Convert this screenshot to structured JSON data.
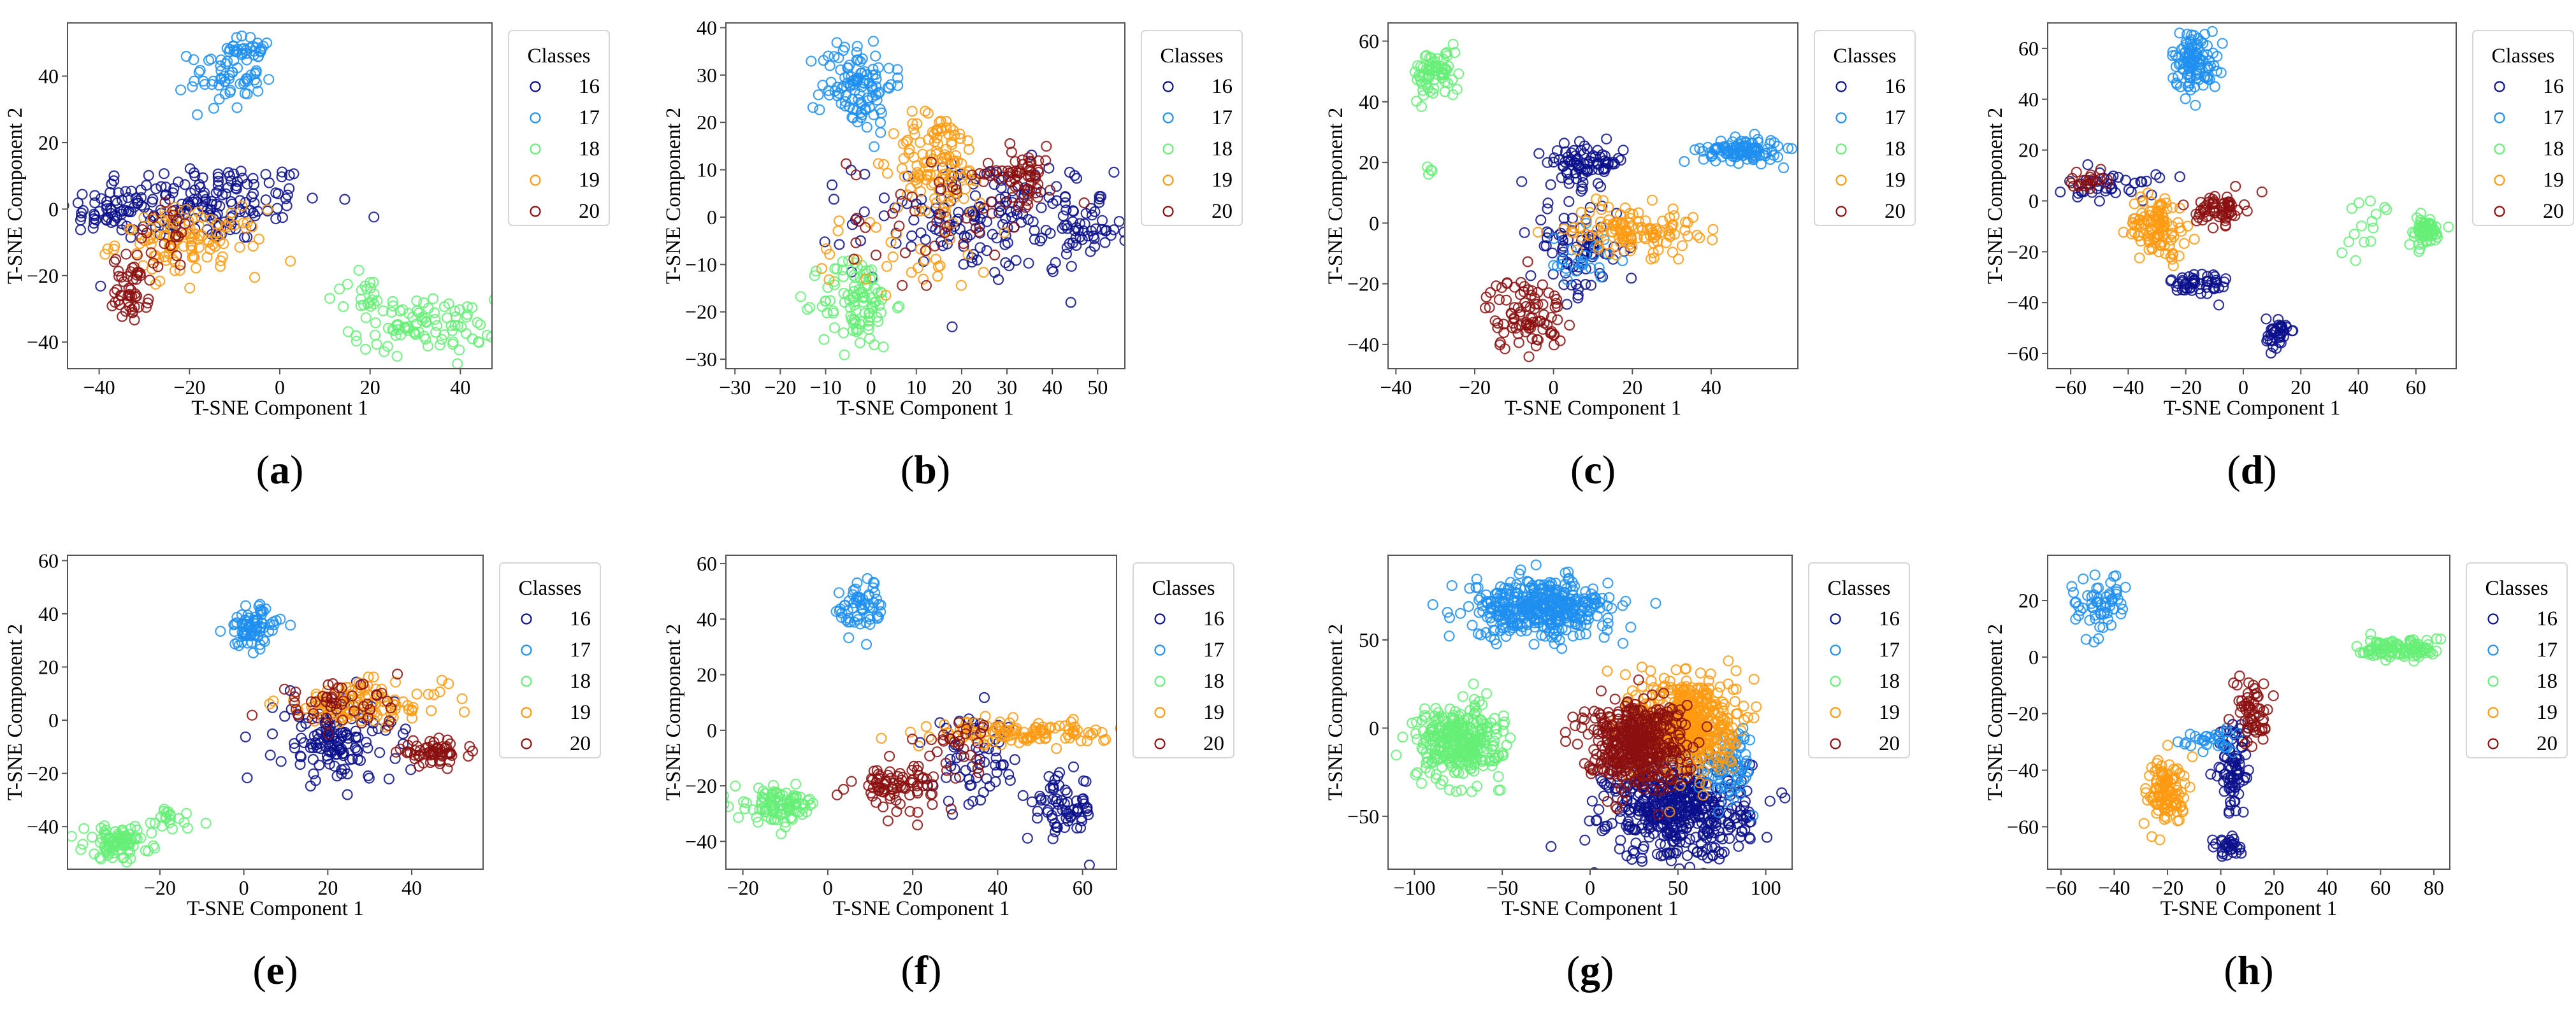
{
  "figure": {
    "classes_title": "Classes"
  },
  "class_colors": {
    "16": "#0a0f8c",
    "17": "#1e8ff0",
    "18": "#66ee77",
    "19": "#ff9a10",
    "20": "#8b0f0f"
  },
  "chart_data": [
    {
      "type": "scatter",
      "panel": "(a)",
      "panel_letter": "a",
      "xlabel": "T-SNE Component 1",
      "ylabel": "T-SNE Component 2",
      "xlim": [
        -47,
        47
      ],
      "ylim": [
        -48,
        56
      ],
      "xticks": [
        -40,
        -20,
        0,
        20,
        40
      ],
      "yticks": [
        -40,
        -20,
        0,
        20,
        40
      ],
      "legend": {
        "title": "Classes",
        "entries": [
          "16",
          "17",
          "18",
          "19",
          "20"
        ],
        "placement": "right-outside-top"
      },
      "series": [
        {
          "name": "16",
          "clusters": [
            {
              "cx": -18,
              "cy": 2,
              "sx": 14,
              "sy": 6,
              "n": 180
            },
            {
              "cx": -38,
              "cy": -2,
              "sx": 4,
              "sy": 3,
              "n": 30
            }
          ]
        },
        {
          "name": "17",
          "clusters": [
            {
              "cx": -12,
              "cy": 40,
              "sx": 4,
              "sy": 5,
              "n": 60
            },
            {
              "cx": -6,
              "cy": 48,
              "sx": 2,
              "sy": 2,
              "n": 25
            }
          ]
        },
        {
          "name": "18",
          "clusters": [
            {
              "cx": 32,
              "cy": -35,
              "sx": 8,
              "sy": 4,
              "n": 90
            },
            {
              "cx": 18,
              "cy": -26,
              "sx": 4,
              "sy": 3,
              "n": 20
            }
          ]
        },
        {
          "name": "19",
          "clusters": [
            {
              "cx": -20,
              "cy": -10,
              "sx": 8,
              "sy": 5,
              "n": 110
            }
          ]
        },
        {
          "name": "20",
          "clusters": [
            {
              "cx": -33,
              "cy": -24,
              "sx": 2,
              "sy": 5,
              "n": 50
            },
            {
              "cx": -26,
              "cy": -8,
              "sx": 3,
              "sy": 5,
              "n": 20
            }
          ]
        }
      ]
    },
    {
      "type": "scatter",
      "panel": "(b)",
      "panel_letter": "b",
      "xlabel": "T-SNE Component 1",
      "ylabel": "T-SNE Component 2",
      "xlim": [
        -32,
        56
      ],
      "ylim": [
        -32,
        41
      ],
      "xticks": [
        -30,
        -20,
        -10,
        0,
        10,
        20,
        30,
        40,
        50
      ],
      "yticks": [
        -30,
        -20,
        -10,
        0,
        10,
        20,
        30,
        40
      ],
      "legend": {
        "title": "Classes",
        "entries": [
          "16",
          "17",
          "18",
          "19",
          "20"
        ],
        "placement": "right-outside-top"
      },
      "series": [
        {
          "name": "16",
          "clusters": [
            {
              "cx": 25,
              "cy": 0,
              "sx": 14,
              "sy": 6,
              "n": 170
            },
            {
              "cx": 47,
              "cy": -3,
              "sx": 4,
              "sy": 3,
              "n": 40
            }
          ]
        },
        {
          "name": "17",
          "clusters": [
            {
              "cx": -3,
              "cy": 28,
              "sx": 4,
              "sy": 5,
              "n": 110
            }
          ]
        },
        {
          "name": "18",
          "clusters": [
            {
              "cx": -3,
              "cy": -18,
              "sx": 4,
              "sy": 5,
              "n": 100
            }
          ]
        },
        {
          "name": "19",
          "clusters": [
            {
              "cx": 15,
              "cy": 12,
              "sx": 5,
              "sy": 5,
              "n": 110
            },
            {
              "cx": 10,
              "cy": -5,
              "sx": 12,
              "sy": 6,
              "n": 40
            }
          ]
        },
        {
          "name": "20",
          "clusters": [
            {
              "cx": 33,
              "cy": 9,
              "sx": 4,
              "sy": 3,
              "n": 60
            },
            {
              "cx": 15,
              "cy": 0,
              "sx": 10,
              "sy": 7,
              "n": 40
            }
          ]
        }
      ]
    },
    {
      "type": "scatter",
      "panel": "(c)",
      "panel_letter": "c",
      "xlabel": "T-SNE Component 1",
      "ylabel": "T-SNE Component 2",
      "xlim": [
        -42,
        62
      ],
      "ylim": [
        -48,
        66
      ],
      "xticks": [
        -40,
        -20,
        0,
        20,
        40
      ],
      "yticks": [
        -40,
        -20,
        0,
        20,
        40,
        60
      ],
      "legend": {
        "title": "Classes",
        "entries": [
          "16",
          "17",
          "18",
          "19",
          "20"
        ],
        "placement": "right-outside-top"
      },
      "series": [
        {
          "name": "16",
          "clusters": [
            {
              "cx": 8,
              "cy": 20,
              "sx": 5,
              "sy": 3,
              "n": 80
            },
            {
              "cx": 6,
              "cy": -8,
              "sx": 6,
              "sy": 8,
              "n": 80
            }
          ]
        },
        {
          "name": "17",
          "clusters": [
            {
              "cx": 48,
              "cy": 24,
              "sx": 5,
              "sy": 2,
              "n": 110
            },
            {
              "cx": 6,
              "cy": -12,
              "sx": 4,
              "sy": 5,
              "n": 25
            }
          ]
        },
        {
          "name": "18",
          "clusters": [
            {
              "cx": -30,
              "cy": 49,
              "sx": 3,
              "sy": 4,
              "n": 70
            },
            {
              "cx": -32,
              "cy": 17,
              "sx": 1,
              "sy": 1,
              "n": 4
            }
          ]
        },
        {
          "name": "19",
          "clusters": [
            {
              "cx": 20,
              "cy": -2,
              "sx": 8,
              "sy": 4,
              "n": 120
            }
          ]
        },
        {
          "name": "20",
          "clusters": [
            {
              "cx": -7,
              "cy": -30,
              "sx": 5,
              "sy": 6,
              "n": 90
            }
          ]
        }
      ]
    },
    {
      "type": "scatter",
      "panel": "(d)",
      "panel_letter": "d",
      "xlabel": "T-SNE Component 1",
      "ylabel": "T-SNE Component 2",
      "xlim": [
        -68,
        74
      ],
      "ylim": [
        -66,
        70
      ],
      "xticks": [
        -60,
        -40,
        -20,
        0,
        20,
        40,
        60
      ],
      "yticks": [
        -60,
        -40,
        -20,
        0,
        20,
        40,
        60
      ],
      "legend": {
        "title": "Classes",
        "entries": [
          "16",
          "17",
          "18",
          "19",
          "20"
        ],
        "placement": "right-outside-top"
      },
      "series": [
        {
          "name": "16",
          "clusters": [
            {
              "cx": -15,
              "cy": -33,
              "sx": 5,
              "sy": 3,
              "n": 50
            },
            {
              "cx": 12,
              "cy": -52,
              "sx": 2,
              "sy": 3,
              "n": 40
            },
            {
              "cx": -45,
              "cy": 6,
              "sx": 8,
              "sy": 3,
              "n": 40
            }
          ]
        },
        {
          "name": "17",
          "clusters": [
            {
              "cx": -17,
              "cy": 55,
              "sx": 4,
              "sy": 6,
              "n": 110
            }
          ]
        },
        {
          "name": "18",
          "clusters": [
            {
              "cx": 63,
              "cy": -12,
              "sx": 3,
              "sy": 3,
              "n": 60
            },
            {
              "cx": 45,
              "cy": -10,
              "sx": 4,
              "sy": 6,
              "n": 15
            }
          ]
        },
        {
          "name": "19",
          "clusters": [
            {
              "cx": -30,
              "cy": -10,
              "sx": 5,
              "sy": 6,
              "n": 110
            }
          ]
        },
        {
          "name": "20",
          "clusters": [
            {
              "cx": -8,
              "cy": -3,
              "sx": 4,
              "sy": 3,
              "n": 60
            },
            {
              "cx": -55,
              "cy": 8,
              "sx": 4,
              "sy": 2,
              "n": 20
            }
          ]
        }
      ]
    },
    {
      "type": "scatter",
      "panel": "(e)",
      "panel_letter": "e",
      "xlabel": "T-SNE Component 1",
      "ylabel": "T-SNE Component 2",
      "xlim": [
        -42,
        57
      ],
      "ylim": [
        -56,
        62
      ],
      "xticks": [
        -20,
        0,
        20,
        40
      ],
      "yticks": [
        -40,
        -20,
        0,
        20,
        40,
        60
      ],
      "legend": {
        "title": "Classes",
        "entries": [
          "16",
          "17",
          "18",
          "19",
          "20"
        ],
        "placement": "right-outside-top"
      },
      "series": [
        {
          "name": "16",
          "clusters": [
            {
              "cx": 22,
              "cy": -8,
              "sx": 7,
              "sy": 8,
              "n": 140
            }
          ]
        },
        {
          "name": "17",
          "clusters": [
            {
              "cx": 2,
              "cy": 35,
              "sx": 3,
              "sy": 4,
              "n": 80
            }
          ]
        },
        {
          "name": "18",
          "clusters": [
            {
              "cx": -30,
              "cy": -46,
              "sx": 4,
              "sy": 3,
              "n": 90
            },
            {
              "cx": -18,
              "cy": -37,
              "sx": 4,
              "sy": 3,
              "n": 20
            }
          ]
        },
        {
          "name": "19",
          "clusters": [
            {
              "cx": 28,
              "cy": 6,
              "sx": 10,
              "sy": 4,
              "n": 110
            }
          ]
        },
        {
          "name": "20",
          "clusters": [
            {
              "cx": 45,
              "cy": -12,
              "sx": 4,
              "sy": 2,
              "n": 60
            },
            {
              "cx": 22,
              "cy": 6,
              "sx": 8,
              "sy": 4,
              "n": 50
            }
          ]
        }
      ]
    },
    {
      "type": "scatter",
      "panel": "(f)",
      "panel_letter": "f",
      "xlabel": "T-SNE Component 1",
      "ylabel": "T-SNE Component 2",
      "xlim": [
        -24,
        68
      ],
      "ylim": [
        -50,
        63
      ],
      "xticks": [
        -20,
        0,
        20,
        40,
        60
      ],
      "yticks": [
        -40,
        -20,
        0,
        20,
        40,
        60
      ],
      "legend": {
        "title": "Classes",
        "entries": [
          "16",
          "17",
          "18",
          "19",
          "20"
        ],
        "placement": "right-outside-top"
      },
      "series": [
        {
          "name": "16",
          "clusters": [
            {
              "cx": 55,
              "cy": -28,
              "sx": 4,
              "sy": 6,
              "n": 70
            },
            {
              "cx": 35,
              "cy": -12,
              "sx": 5,
              "sy": 8,
              "n": 60
            }
          ]
        },
        {
          "name": "17",
          "clusters": [
            {
              "cx": 8,
              "cy": 44,
              "sx": 3,
              "sy": 5,
              "n": 60
            }
          ]
        },
        {
          "name": "18",
          "clusters": [
            {
              "cx": -12,
              "cy": -27,
              "sx": 5,
              "sy": 3,
              "n": 100
            }
          ]
        },
        {
          "name": "19",
          "clusters": [
            {
              "cx": 46,
              "cy": -1,
              "sx": 10,
              "sy": 2,
              "n": 110
            }
          ]
        },
        {
          "name": "20",
          "clusters": [
            {
              "cx": 16,
              "cy": -20,
              "sx": 5,
              "sy": 4,
              "n": 80
            },
            {
              "cx": 30,
              "cy": -5,
              "sx": 4,
              "sy": 5,
              "n": 30
            }
          ]
        }
      ]
    },
    {
      "type": "scatter",
      "panel": "(g)",
      "panel_letter": "g",
      "xlabel": "T-SNE Component 1",
      "ylabel": "T-SNE Component 2",
      "xlim": [
        -115,
        115
      ],
      "ylim": [
        -80,
        98
      ],
      "xticks": [
        -100,
        -50,
        0,
        50,
        100
      ],
      "yticks": [
        -50,
        0,
        50
      ],
      "legend": {
        "title": "Classes",
        "entries": [
          "16",
          "17",
          "18",
          "19",
          "20"
        ],
        "placement": "right-outside-top"
      },
      "series": [
        {
          "name": "16",
          "clusters": [
            {
              "cx": 50,
              "cy": -45,
              "sx": 20,
              "sy": 15,
              "n": 520
            }
          ]
        },
        {
          "name": "17",
          "clusters": [
            {
              "cx": -28,
              "cy": 68,
              "sx": 20,
              "sy": 8,
              "n": 400
            },
            {
              "cx": 80,
              "cy": -20,
              "sx": 8,
              "sy": 10,
              "n": 80
            }
          ]
        },
        {
          "name": "18",
          "clusters": [
            {
              "cx": -75,
              "cy": -8,
              "sx": 12,
              "sy": 10,
              "n": 320
            }
          ]
        },
        {
          "name": "19",
          "clusters": [
            {
              "cx": 55,
              "cy": 2,
              "sx": 14,
              "sy": 14,
              "n": 500
            }
          ]
        },
        {
          "name": "20",
          "clusters": [
            {
              "cx": 25,
              "cy": -8,
              "sx": 14,
              "sy": 12,
              "n": 450
            }
          ]
        }
      ]
    },
    {
      "type": "scatter",
      "panel": "(h)",
      "panel_letter": "h",
      "xlabel": "T-SNE Component 1",
      "ylabel": "T-SNE Component 2",
      "xlim": [
        -65,
        86
      ],
      "ylim": [
        -75,
        36
      ],
      "xticks": [
        -60,
        -40,
        -20,
        0,
        20,
        40,
        60,
        80
      ],
      "yticks": [
        -60,
        -40,
        -20,
        0,
        20
      ],
      "legend": {
        "title": "Classes",
        "entries": [
          "16",
          "17",
          "18",
          "19",
          "20"
        ],
        "placement": "right-outside-top"
      },
      "series": [
        {
          "name": "16",
          "clusters": [
            {
              "cx": 5,
              "cy": -40,
              "sx": 3,
              "sy": 8,
              "n": 80
            },
            {
              "cx": 3,
              "cy": -67,
              "sx": 3,
              "sy": 2,
              "n": 30
            }
          ]
        },
        {
          "name": "17",
          "clusters": [
            {
              "cx": -46,
              "cy": 18,
              "sx": 5,
              "sy": 6,
              "n": 60
            },
            {
              "cx": -5,
              "cy": -30,
              "sx": 5,
              "sy": 2,
              "n": 30
            }
          ]
        },
        {
          "name": "18",
          "clusters": [
            {
              "cx": 68,
              "cy": 3,
              "sx": 8,
              "sy": 2,
              "n": 100
            }
          ]
        },
        {
          "name": "19",
          "clusters": [
            {
              "cx": -20,
              "cy": -48,
              "sx": 4,
              "sy": 6,
              "n": 110
            }
          ]
        },
        {
          "name": "20",
          "clusters": [
            {
              "cx": 12,
              "cy": -20,
              "sx": 3,
              "sy": 6,
              "n": 60
            }
          ]
        }
      ]
    }
  ]
}
